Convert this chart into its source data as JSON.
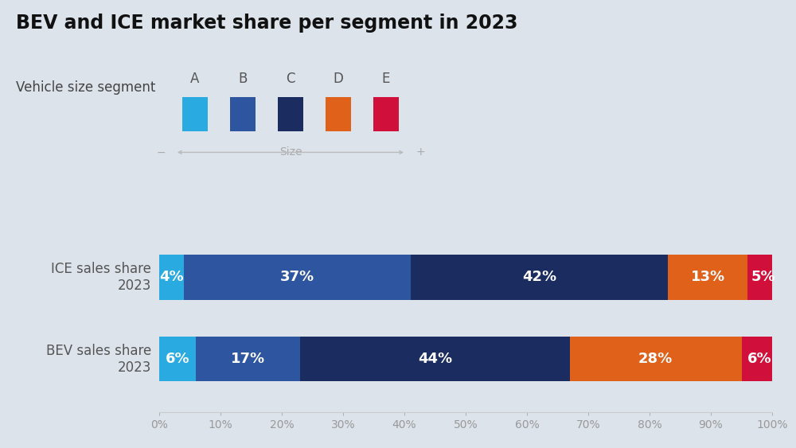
{
  "title": "BEV and ICE market share per segment in 2023",
  "background_color": "#dce3eb",
  "segments": [
    "A",
    "B",
    "C",
    "D",
    "E"
  ],
  "segment_colors": [
    "#29abe2",
    "#2e55a0",
    "#1b2d60",
    "#e0621a",
    "#d0103a"
  ],
  "bars": [
    {
      "label": "ICE sales share\n2023",
      "values": [
        4,
        37,
        42,
        13,
        5
      ]
    },
    {
      "label": "BEV sales share\n2023",
      "values": [
        6,
        17,
        44,
        28,
        6
      ]
    }
  ],
  "bar_height": 0.55,
  "label_fontsize": 12,
  "pct_fontsize": 13,
  "title_fontsize": 17,
  "legend_header_fontsize": 12,
  "legend_seg_fontsize": 12,
  "axis_tick_color": "#999999",
  "axis_tick_fontsize": 10,
  "text_color_white": "#ffffff",
  "bar_label_color": "#555555",
  "title_color": "#111111",
  "arrow_color": "#bbbbbb",
  "size_label_color": "#aaaaaa"
}
